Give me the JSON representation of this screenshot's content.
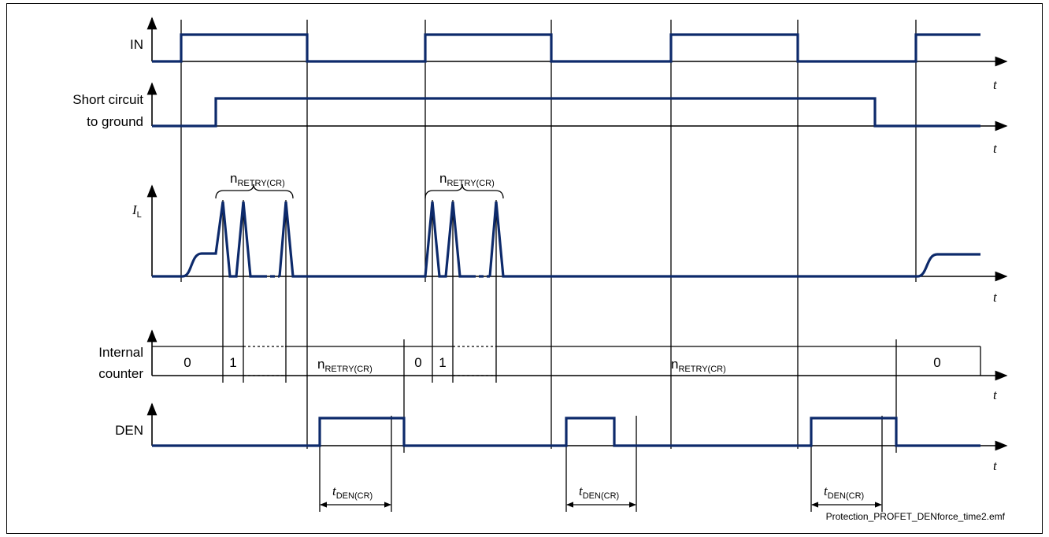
{
  "signals": {
    "in_label": "IN",
    "sc_label_line1": "Short circuit",
    "sc_label_line2": "to ground",
    "il_label_main": "I",
    "il_label_sub": "L",
    "counter_label_line1": "Internal",
    "counter_label_line2": "counter",
    "den_label": "DEN"
  },
  "time_axis_label": "t",
  "retry_label": {
    "main": "n",
    "sub": "RETRY(CR)"
  },
  "counter_values": {
    "first_zero": "0",
    "first_one": "1",
    "second_zero": "0",
    "second_one": "1",
    "final_zero": "0"
  },
  "den_delay_label": {
    "main": "t",
    "sub": "DEN(CR)"
  },
  "caption": "Protection_PROFET_DENforce_time2.emf",
  "colors": {
    "signal": "#0d2a6b",
    "axis": "#000000"
  }
}
